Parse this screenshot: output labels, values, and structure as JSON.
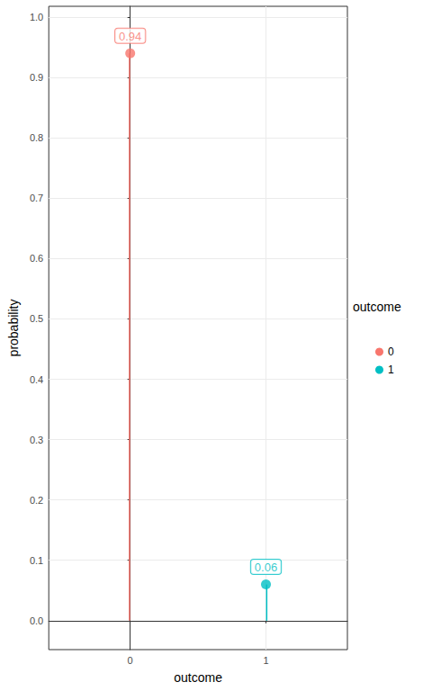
{
  "chart_data": {
    "type": "lollipop",
    "x_label": "outcome",
    "y_label": "probability",
    "legend_title": "outcome",
    "x": [
      0,
      1
    ],
    "xlim": [
      -0.6,
      1.6
    ],
    "xticks": [
      0,
      1
    ],
    "ylim": [
      -0.048,
      1.018
    ],
    "yticks": [
      {
        "value": 0,
        "label": "0.0"
      },
      0.1,
      0.2,
      0.3,
      0.4,
      0.5,
      0.6,
      0.7,
      0.8,
      0.9,
      {
        "value": 1,
        "label": "1.0"
      }
    ],
    "series": [
      {
        "name": "0",
        "color": "#F8766D",
        "values": [
          0.94,
          null
        ]
      },
      {
        "name": "1",
        "color": "#00BFC4",
        "values": [
          null,
          0.06
        ]
      }
    ],
    "data_labels": true,
    "grid": true,
    "legend": "right"
  }
}
